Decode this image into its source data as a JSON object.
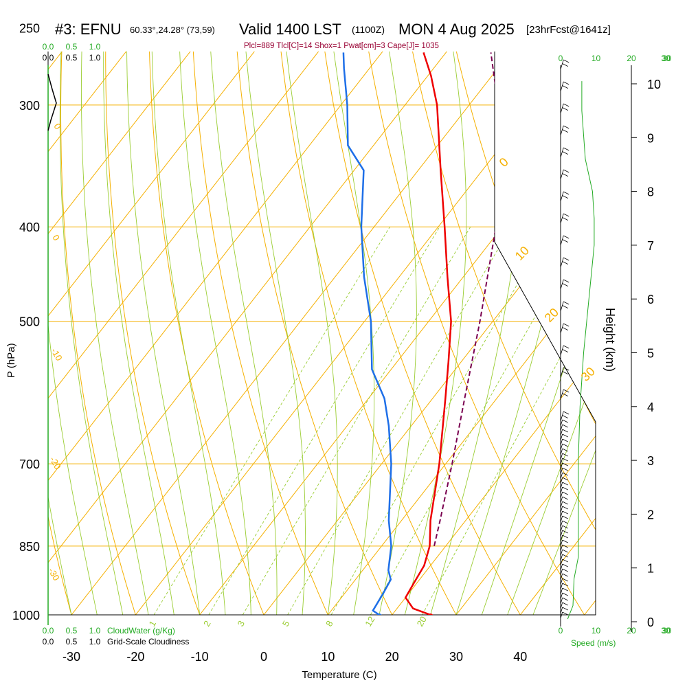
{
  "header": {
    "station": "#3: EFNU",
    "coords": "60.33°,24.28° (73,59)",
    "valid": "Valid 1400 LST",
    "zulu": "(1100Z)",
    "date": "MON 4 Aug 2025",
    "forecast": "[23hrFcst@1641z]",
    "indices": "Plcl=889 Tlcl[C]=14 Shox=1 Pwat[cm]=3 Cape[J]= 1035"
  },
  "labels": {
    "pressure_axis": "P (hPa)",
    "height_axis": "Height (km)",
    "temperature_axis": "Temperature (C)",
    "speed_axis": "Speed (m/s)",
    "cloud_water": "CloudWater (g/Kg)",
    "cloudiness": "Grid-Scale Cloudiness"
  },
  "colors": {
    "isobar": "#f5b000",
    "dry_adiabat": "#f5b000",
    "moist_adiabat": "#9acd32",
    "mixing_ratio": "#9acd32",
    "temperature": "#ee0000",
    "dewpoint": "#1e6fe8",
    "parcel": "#7a0050",
    "wind_speed": "#22aa22",
    "cloud_scale": "#22aa22",
    "indices": "#990033"
  },
  "chart_data": {
    "type": "skew-t",
    "pressure_levels": [
      1000,
      850,
      700,
      500,
      400,
      300,
      250
    ],
    "pressure_ticks": [
      "1000",
      "850",
      "700",
      "500",
      "400",
      "300",
      "250"
    ],
    "temperature_ticks": [
      -30,
      -20,
      -10,
      0,
      10,
      20,
      30,
      40
    ],
    "height_ticks_km": [
      0,
      1,
      2,
      3,
      4,
      5,
      6,
      7,
      8,
      9,
      10
    ],
    "speed_ticks": [
      "0",
      "10",
      "20",
      "30"
    ],
    "cloud_scale_top": [
      "0.0",
      "0.5",
      "1.0"
    ],
    "cloud_scale_bottom": [
      "0.0",
      "0.5",
      "1.0"
    ],
    "mixing_ratio_labels": [
      "1",
      "2",
      "3",
      "5",
      "8",
      "12",
      "20"
    ],
    "theta_labels": [
      "0",
      "10",
      "20",
      "30"
    ],
    "temperature_profile": [
      {
        "p": 1000,
        "t": 26.0
      },
      {
        "p": 985,
        "t": 22.5
      },
      {
        "p": 960,
        "t": 20.0
      },
      {
        "p": 925,
        "t": 19.5
      },
      {
        "p": 890,
        "t": 19.0
      },
      {
        "p": 850,
        "t": 17.5
      },
      {
        "p": 800,
        "t": 14.5
      },
      {
        "p": 700,
        "t": 9.0
      },
      {
        "p": 600,
        "t": 2.0
      },
      {
        "p": 550,
        "t": -2.0
      },
      {
        "p": 500,
        "t": -6.5
      },
      {
        "p": 450,
        "t": -12.5
      },
      {
        "p": 400,
        "t": -19.0
      },
      {
        "p": 350,
        "t": -26.5
      },
      {
        "p": 300,
        "t": -35.0
      },
      {
        "p": 280,
        "t": -39.5
      },
      {
        "p": 265,
        "t": -43.5
      }
    ],
    "dewpoint_profile": [
      {
        "p": 1000,
        "td": 18.0
      },
      {
        "p": 990,
        "td": 16.5
      },
      {
        "p": 950,
        "td": 16.0
      },
      {
        "p": 920,
        "td": 15.5
      },
      {
        "p": 900,
        "td": 14.0
      },
      {
        "p": 850,
        "td": 11.5
      },
      {
        "p": 800,
        "td": 8.0
      },
      {
        "p": 700,
        "td": 1.5
      },
      {
        "p": 640,
        "td": -3.5
      },
      {
        "p": 600,
        "td": -7.5
      },
      {
        "p": 560,
        "td": -13.0
      },
      {
        "p": 500,
        "td": -19.0
      },
      {
        "p": 450,
        "td": -25.5
      },
      {
        "p": 400,
        "td": -32.0
      },
      {
        "p": 350,
        "td": -38.5
      },
      {
        "p": 330,
        "td": -44.0
      },
      {
        "p": 300,
        "td": -49.0
      },
      {
        "p": 275,
        "td": -54.0
      },
      {
        "p": 265,
        "td": -56.0
      }
    ],
    "parcel_profile": [
      {
        "p": 850,
        "t": 18.2
      },
      {
        "p": 800,
        "t": 16.0
      },
      {
        "p": 700,
        "t": 11.0
      },
      {
        "p": 600,
        "t": 5.0
      },
      {
        "p": 500,
        "t": -2.0
      },
      {
        "p": 400,
        "t": -11.0
      },
      {
        "p": 350,
        "t": -17.5
      },
      {
        "p": 300,
        "t": -25.5
      },
      {
        "p": 265,
        "t": -33.0
      }
    ],
    "surface_temperature": 26.0,
    "surface_dewpoint": 18.0,
    "wind_speed_profile": [
      {
        "z": 0.05,
        "s": 2.0
      },
      {
        "z": 0.3,
        "s": 3.5
      },
      {
        "z": 0.8,
        "s": 3.8
      },
      {
        "z": 1.2,
        "s": 5.0
      },
      {
        "z": 2.0,
        "s": 5.0
      },
      {
        "z": 3.0,
        "s": 5.0
      },
      {
        "z": 4.0,
        "s": 5.5
      },
      {
        "z": 5.0,
        "s": 6.5
      },
      {
        "z": 6.0,
        "s": 8.0
      },
      {
        "z": 7.0,
        "s": 9.5
      },
      {
        "z": 7.5,
        "s": 9.5
      },
      {
        "z": 8.0,
        "s": 9.0
      },
      {
        "z": 8.6,
        "s": 7.0
      },
      {
        "z": 9.5,
        "s": 6.0
      },
      {
        "z": 10.0,
        "s": 6.0
      }
    ]
  }
}
